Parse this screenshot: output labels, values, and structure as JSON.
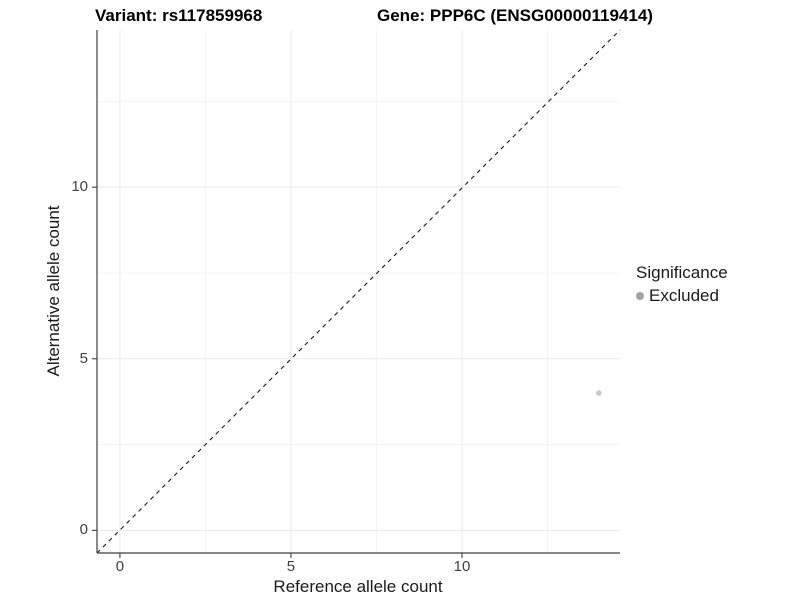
{
  "titles": {
    "left": "Variant: rs117859968",
    "right": "Gene: PPP6C (ENSG00000119414)"
  },
  "legend": {
    "title": "Significance",
    "items": [
      {
        "label": "Excluded",
        "dot_color": "#a2a2a2"
      }
    ]
  },
  "colors": {
    "grid_major": "#e9e9e9",
    "grid_minor": "#f4f4f4",
    "axis_line": "#3f3f3f",
    "tick_mark": "#3f3f3f",
    "identity_line": "#1a1a1a",
    "point": "#c6c6c6"
  },
  "chart_data": {
    "type": "scatter",
    "title": "Variant: rs117859968 | Gene: PPP6C (ENSG00000119414)",
    "xlabel": "Reference allele count",
    "ylabel": "Alternative allele count",
    "xlim": [
      -0.67,
      14.62
    ],
    "ylim": [
      -0.66,
      14.58
    ],
    "x_ticks": [
      0,
      5,
      10
    ],
    "y_ticks": [
      0,
      5,
      10
    ],
    "x_minor_ticks": [
      2.5,
      7.5,
      12.5
    ],
    "y_minor_ticks": [
      2.5,
      7.5,
      12.5
    ],
    "grid": true,
    "legend_position": "right",
    "reference_line": {
      "type": "identity y=x",
      "style": "dashed",
      "color": "#1a1a1a"
    },
    "series": [
      {
        "name": "Excluded",
        "color": "#c6c6c6",
        "point_radius_px": 2.8,
        "points": [
          {
            "x": 14,
            "y": 4
          }
        ]
      }
    ]
  }
}
